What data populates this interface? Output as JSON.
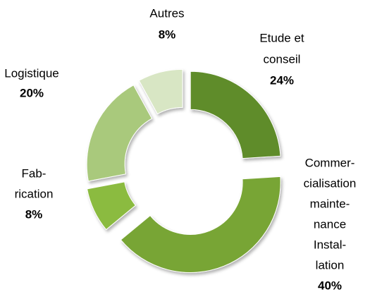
{
  "chart_data": {
    "type": "donut",
    "categories": [
      [
        "Etude et",
        "conseil"
      ],
      [
        "Commer-",
        "cialisation",
        "mainte-",
        "nance",
        "Instal-",
        "lation"
      ],
      [
        "Fab-",
        "rication"
      ],
      [
        "Logistique"
      ],
      [
        "Autres"
      ]
    ],
    "values": [
      24,
      40,
      8,
      20,
      8
    ],
    "value_labels": [
      "24%",
      "40%",
      "8%",
      "20%",
      "8%"
    ],
    "colors": [
      "#5f8c2a",
      "#78a535",
      "#8bbb3f",
      "#a9c97c",
      "#d8e6c4"
    ]
  }
}
